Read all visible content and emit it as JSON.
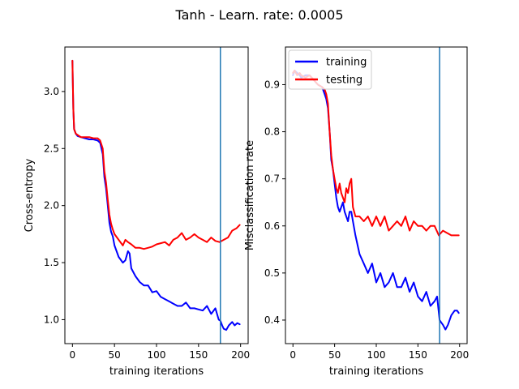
{
  "figure": {
    "title": "Tanh - Learn. rate: 0.0005"
  },
  "chart_data": [
    {
      "type": "line",
      "xlabel": "training iterations",
      "ylabel": "Cross-entropy",
      "xlim": [
        -9,
        209
      ],
      "ylim": [
        0.79,
        3.39
      ],
      "xticks": [
        0,
        50,
        100,
        150,
        200
      ],
      "yticks": [
        1.0,
        1.5,
        2.0,
        2.5,
        3.0
      ],
      "xtick_labels": [
        "0",
        "50",
        "100",
        "150",
        "200"
      ],
      "ytick_labels": [
        "1.0",
        "1.5",
        "2.0",
        "2.5",
        "3.0"
      ],
      "vline": 176,
      "vline_color": "#1f77b4",
      "legend": null,
      "series": [
        {
          "color": "#0000ff",
          "x": [
            0,
            1,
            2,
            4,
            6,
            10,
            15,
            20,
            25,
            30,
            33,
            36,
            38,
            40,
            42,
            44,
            46,
            48,
            50,
            55,
            60,
            63,
            66,
            68,
            70,
            75,
            80,
            85,
            90,
            95,
            100,
            105,
            110,
            115,
            120,
            125,
            130,
            135,
            140,
            145,
            150,
            155,
            160,
            165,
            170,
            174,
            176,
            178,
            180,
            183,
            186,
            190,
            193,
            196,
            199
          ],
          "values": [
            3.27,
            2.85,
            2.67,
            2.63,
            2.61,
            2.6,
            2.59,
            2.58,
            2.58,
            2.57,
            2.55,
            2.45,
            2.25,
            2.15,
            2.0,
            1.85,
            1.77,
            1.73,
            1.65,
            1.55,
            1.5,
            1.52,
            1.6,
            1.58,
            1.45,
            1.38,
            1.33,
            1.3,
            1.3,
            1.24,
            1.25,
            1.2,
            1.18,
            1.16,
            1.14,
            1.12,
            1.12,
            1.15,
            1.1,
            1.1,
            1.09,
            1.08,
            1.12,
            1.05,
            1.1,
            1.0,
            0.99,
            0.95,
            0.92,
            0.91,
            0.95,
            0.98,
            0.95,
            0.97,
            0.96
          ]
        },
        {
          "color": "#ff0000",
          "x": [
            0,
            1,
            2,
            4,
            6,
            10,
            15,
            20,
            25,
            30,
            33,
            36,
            38,
            40,
            42,
            44,
            46,
            48,
            50,
            55,
            60,
            63,
            66,
            70,
            75,
            80,
            85,
            90,
            95,
            100,
            105,
            110,
            115,
            120,
            125,
            130,
            135,
            140,
            145,
            150,
            155,
            160,
            165,
            170,
            175,
            180,
            185,
            190,
            195,
            199
          ],
          "values": [
            3.27,
            2.85,
            2.67,
            2.63,
            2.62,
            2.6,
            2.6,
            2.6,
            2.59,
            2.59,
            2.57,
            2.5,
            2.3,
            2.2,
            2.05,
            1.92,
            1.84,
            1.79,
            1.75,
            1.7,
            1.65,
            1.7,
            1.68,
            1.66,
            1.63,
            1.63,
            1.62,
            1.63,
            1.64,
            1.66,
            1.67,
            1.68,
            1.65,
            1.7,
            1.72,
            1.76,
            1.7,
            1.72,
            1.75,
            1.72,
            1.7,
            1.68,
            1.72,
            1.69,
            1.68,
            1.7,
            1.72,
            1.78,
            1.8,
            1.83
          ]
        }
      ]
    },
    {
      "type": "line",
      "xlabel": "training iterations",
      "ylabel": "Misclassification rate",
      "xlim": [
        -9,
        209
      ],
      "ylim": [
        0.35,
        0.98
      ],
      "xticks": [
        0,
        50,
        100,
        150,
        200
      ],
      "yticks": [
        0.4,
        0.5,
        0.6,
        0.7,
        0.8,
        0.9
      ],
      "xtick_labels": [
        "0",
        "50",
        "100",
        "150",
        "200"
      ],
      "ytick_labels": [
        "0.4",
        "0.5",
        "0.6",
        "0.7",
        "0.8",
        "0.9"
      ],
      "vline": 176,
      "vline_color": "#1f77b4",
      "legend": {
        "position": "top-left",
        "entries": [
          {
            "label": "training",
            "color": "#0000ff"
          },
          {
            "label": "testing",
            "color": "#ff0000"
          }
        ]
      },
      "series": [
        {
          "name": "training",
          "color": "#0000ff",
          "x": [
            0,
            2,
            5,
            8,
            10,
            15,
            20,
            25,
            30,
            35,
            38,
            40,
            42,
            44,
            46,
            48,
            50,
            52,
            54,
            56,
            58,
            60,
            62,
            64,
            66,
            68,
            70,
            72,
            75,
            80,
            85,
            90,
            95,
            100,
            105,
            110,
            115,
            120,
            125,
            130,
            135,
            140,
            145,
            150,
            155,
            160,
            165,
            170,
            173,
            176,
            178,
            180,
            183,
            186,
            190,
            194,
            197,
            199
          ],
          "values": [
            0.92,
            0.93,
            0.925,
            0.92,
            0.915,
            0.92,
            0.92,
            0.91,
            0.9,
            0.895,
            0.88,
            0.87,
            0.85,
            0.8,
            0.74,
            0.72,
            0.69,
            0.66,
            0.64,
            0.63,
            0.64,
            0.65,
            0.63,
            0.62,
            0.61,
            0.63,
            0.63,
            0.61,
            0.58,
            0.54,
            0.52,
            0.5,
            0.52,
            0.48,
            0.5,
            0.47,
            0.48,
            0.5,
            0.47,
            0.47,
            0.49,
            0.46,
            0.48,
            0.45,
            0.44,
            0.46,
            0.43,
            0.44,
            0.45,
            0.4,
            0.395,
            0.39,
            0.38,
            0.39,
            0.41,
            0.42,
            0.42,
            0.415
          ]
        },
        {
          "name": "testing",
          "color": "#ff0000",
          "x": [
            0,
            2,
            5,
            8,
            10,
            15,
            20,
            25,
            30,
            35,
            38,
            40,
            42,
            44,
            46,
            48,
            50,
            52,
            54,
            56,
            58,
            60,
            62,
            64,
            66,
            68,
            70,
            72,
            75,
            80,
            85,
            90,
            95,
            100,
            105,
            110,
            115,
            120,
            125,
            130,
            135,
            140,
            145,
            150,
            155,
            160,
            165,
            170,
            175,
            180,
            185,
            190,
            195,
            199
          ],
          "values": [
            0.925,
            0.93,
            0.92,
            0.925,
            0.92,
            0.915,
            0.92,
            0.91,
            0.9,
            0.895,
            0.89,
            0.88,
            0.86,
            0.8,
            0.75,
            0.72,
            0.7,
            0.68,
            0.67,
            0.69,
            0.67,
            0.66,
            0.65,
            0.68,
            0.67,
            0.69,
            0.7,
            0.64,
            0.62,
            0.62,
            0.61,
            0.62,
            0.6,
            0.62,
            0.6,
            0.62,
            0.59,
            0.6,
            0.61,
            0.6,
            0.62,
            0.59,
            0.61,
            0.6,
            0.6,
            0.59,
            0.6,
            0.6,
            0.58,
            0.59,
            0.585,
            0.58,
            0.58,
            0.58
          ]
        }
      ]
    }
  ]
}
